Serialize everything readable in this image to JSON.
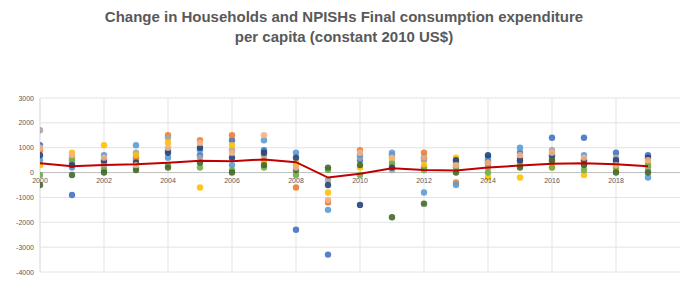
{
  "chart_data": {
    "type": "scatter",
    "title": "Change in Households and NPISHs Final consumption expenditure\nper capita (constant 2010 US$)",
    "x": [
      2000,
      2001,
      2002,
      2003,
      2004,
      2005,
      2006,
      2007,
      2008,
      2009,
      2010,
      2011,
      2012,
      2013,
      2014,
      2015,
      2016,
      2017,
      2018,
      2019
    ],
    "xlim": [
      2000,
      2020
    ],
    "xticks": [
      2000,
      2002,
      2004,
      2006,
      2008,
      2010,
      2012,
      2014,
      2016,
      2018
    ],
    "ylim": [
      -4000,
      3000
    ],
    "yticks": [
      -4000,
      -3000,
      -2000,
      -1000,
      0,
      1000,
      2000,
      3000
    ],
    "grid": true,
    "series": [
      {
        "type": "scatter",
        "marker": "circle",
        "color": "#4472c4",
        "values": [
          1100,
          -900,
          400,
          600,
          900,
          700,
          1300,
          900,
          -2300,
          -3300,
          500,
          700,
          200,
          300,
          500,
          800,
          1400,
          1400,
          800,
          700
        ]
      },
      {
        "type": "scatter",
        "marker": "circle",
        "color": "#ed7d31",
        "values": [
          900,
          600,
          300,
          500,
          1500,
          1300,
          1500,
          500,
          -600,
          -1200,
          900,
          300,
          800,
          -400,
          200,
          600,
          400,
          500,
          300,
          200
        ]
      },
      {
        "type": "scatter",
        "marker": "circle",
        "color": "#a5a5a5",
        "values": [
          1700,
          400,
          200,
          800,
          1400,
          600,
          900,
          700,
          300,
          -300,
          600,
          100,
          500,
          400,
          300,
          400,
          900,
          300,
          600,
          100
        ]
      },
      {
        "type": "scatter",
        "marker": "circle",
        "color": "#ffc000",
        "values": [
          300,
          800,
          1100,
          700,
          1200,
          -600,
          1100,
          400,
          400,
          -800,
          200,
          600,
          300,
          600,
          -200,
          -200,
          200,
          -100,
          100,
          400
        ]
      },
      {
        "type": "scatter",
        "marker": "circle",
        "color": "#5b9bd5",
        "values": [
          500,
          200,
          700,
          1100,
          600,
          900,
          300,
          1300,
          800,
          -1500,
          700,
          800,
          -800,
          -500,
          600,
          1000,
          600,
          700,
          400,
          -200
        ]
      },
      {
        "type": "scatter",
        "marker": "circle",
        "color": "#70ad47",
        "values": [
          -100,
          500,
          100,
          200,
          300,
          200,
          100,
          200,
          -100,
          100,
          -100,
          400,
          100,
          200,
          0,
          300,
          200,
          100,
          200,
          300
        ]
      },
      {
        "type": "scatter",
        "marker": "circle",
        "color": "#264478",
        "values": [
          700,
          300,
          500,
          400,
          800,
          1000,
          600,
          800,
          600,
          -500,
          -1300,
          200,
          600,
          500,
          700,
          500,
          700,
          500,
          500,
          600
        ]
      },
      {
        "type": "scatter",
        "marker": "circle",
        "color": "#43682b",
        "values": [
          -500,
          -100,
          0,
          100,
          200,
          400,
          0,
          300,
          100,
          200,
          300,
          -1800,
          -1250,
          0,
          400,
          200,
          500,
          300,
          0,
          0
        ]
      },
      {
        "type": "scatter",
        "marker": "circle",
        "color": "#f4b183",
        "values": [
          1000,
          700,
          600,
          300,
          1000,
          1200,
          800,
          1500,
          200,
          -1100,
          800,
          600,
          600,
          300,
          400,
          700,
          800,
          600,
          300,
          500
        ]
      },
      {
        "type": "line",
        "line_style": "solid",
        "color": "#c00000",
        "values": [
          380,
          250,
          300,
          330,
          400,
          480,
          460,
          530,
          420,
          -200,
          -50,
          170,
          100,
          80,
          200,
          280,
          350,
          380,
          330,
          250
        ]
      }
    ]
  }
}
